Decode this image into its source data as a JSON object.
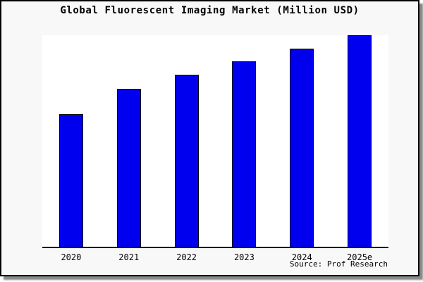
{
  "window": {
    "source_label": "Source: Prof Research"
  },
  "colors": {
    "bar_fill": "#0000EE",
    "bar_border": "#000000",
    "frame_background": "#F8F8F8",
    "plot_background": "#FFFFFF",
    "axis": "#000000",
    "shadow": "#8A8A8A",
    "text": "#000000"
  },
  "chart_data": {
    "type": "bar",
    "title": "Global Fluorescent Imaging Market (Million USD)",
    "categories": [
      "2020",
      "2021",
      "2022",
      "2023",
      "2024",
      "2025e"
    ],
    "values": [
      62.7,
      74.8,
      81.3,
      87.7,
      93.7,
      100.0
    ],
    "xlabel": "",
    "ylabel": "",
    "ylim": [
      0,
      100
    ],
    "y_axis_visible": false,
    "grid": false,
    "legend": false,
    "values_are_relative_estimates": true
  }
}
